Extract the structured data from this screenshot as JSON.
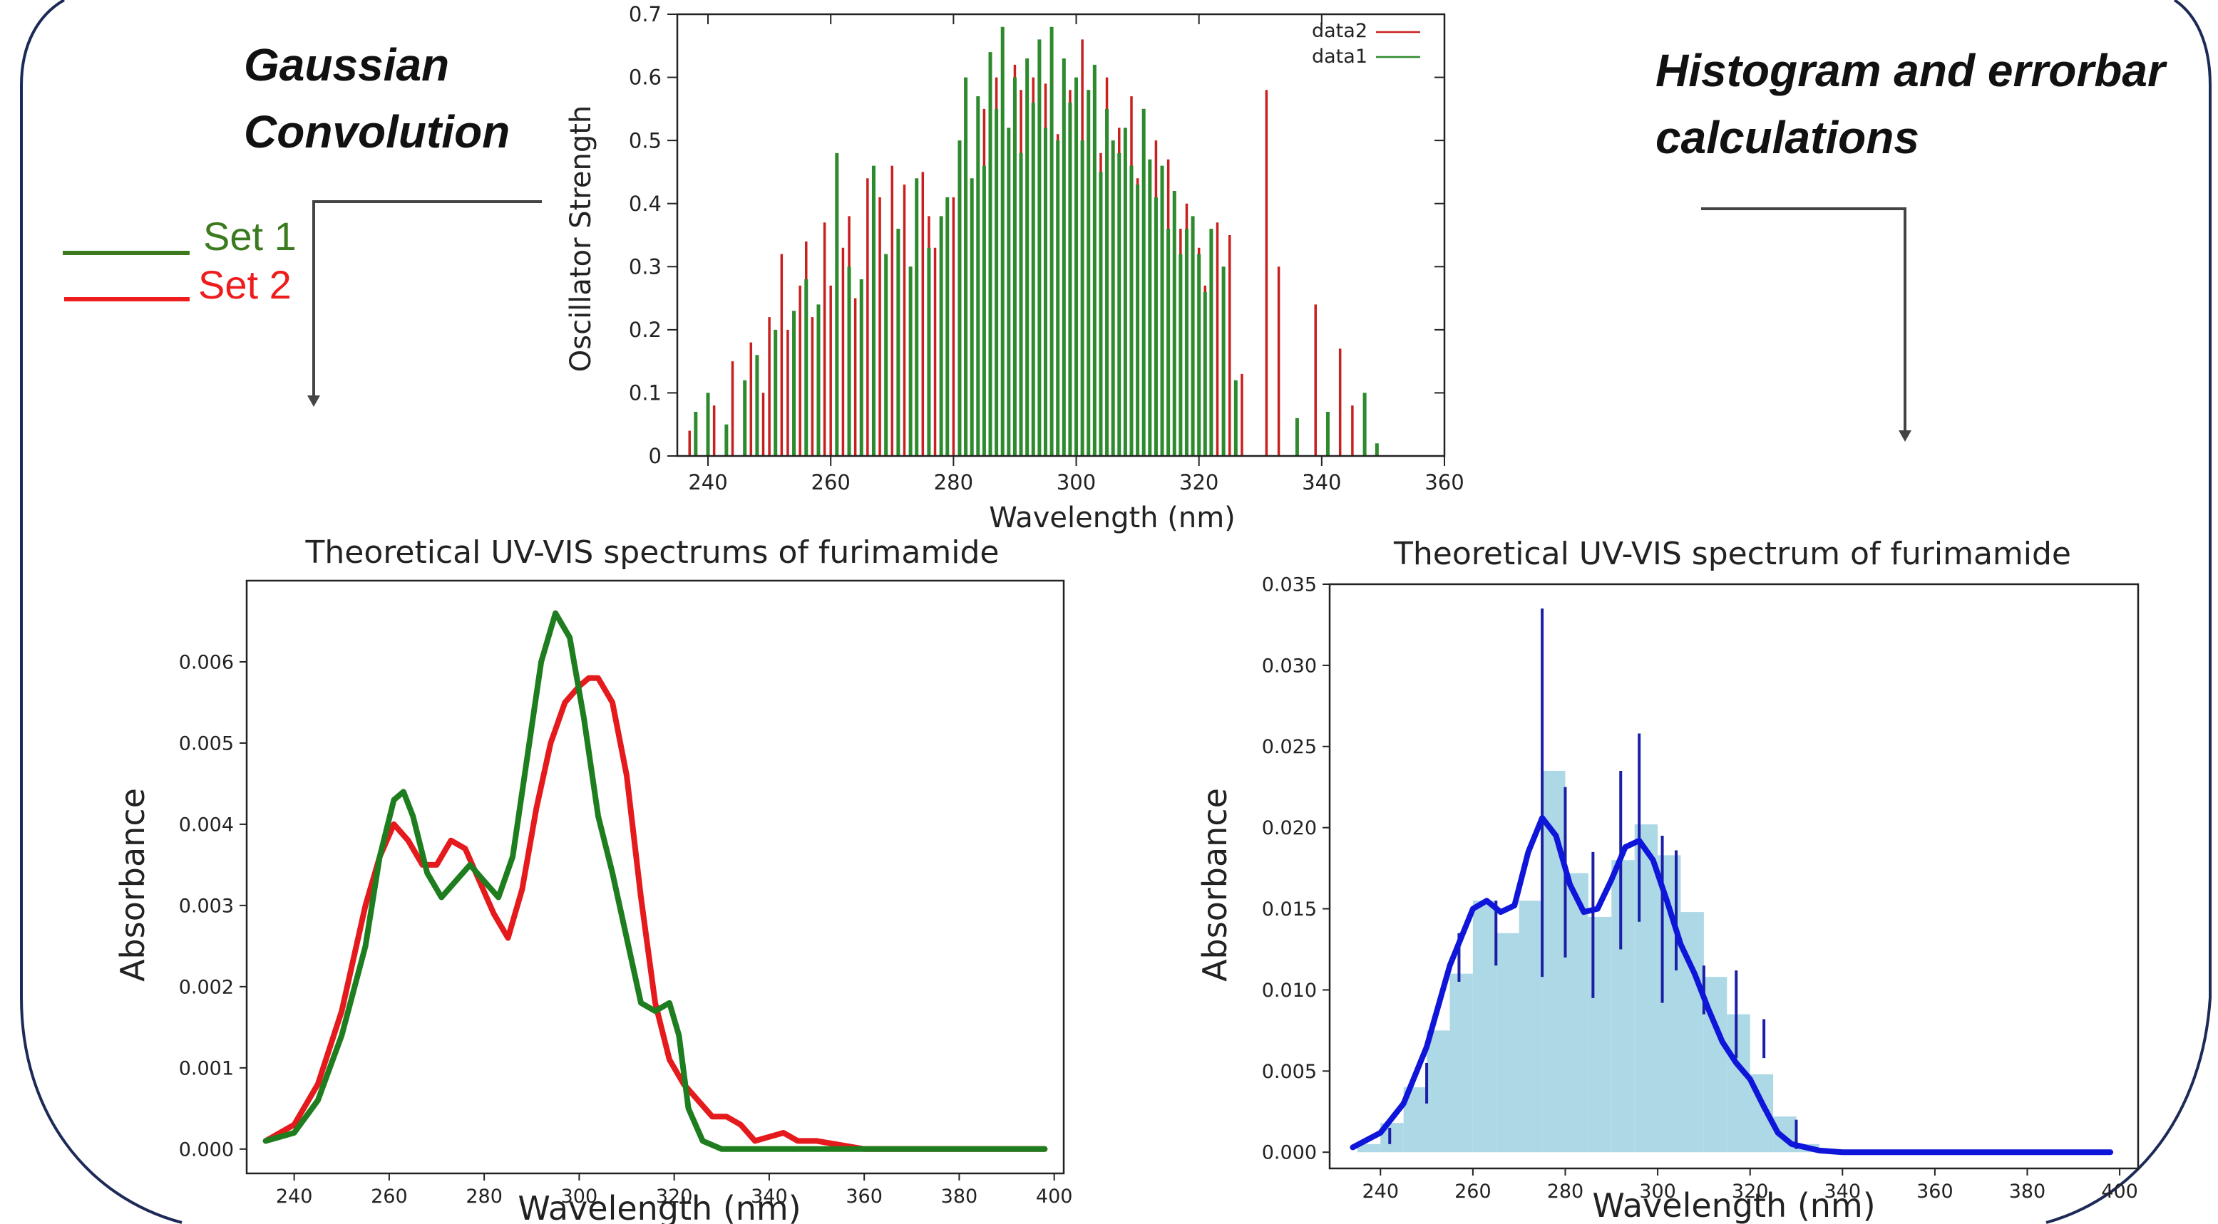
{
  "captions": {
    "gaussian_line1": "Gaussian",
    "gaussian_line2": "Convolution",
    "histogram_line1": "Histogram and errorbar",
    "histogram_line2": "calculations"
  },
  "side_legend": {
    "set1_label": "Set 1",
    "set1_color": "#3b7a1e",
    "set2_label": "Set 2",
    "set2_color": "#ee1c1c"
  },
  "chart_data": [
    {
      "type": "bar",
      "subtype": "stick-spectrum",
      "title": "",
      "xlabel": "Wavelength (nm)",
      "ylabel": "Oscillator Strength",
      "xlim": [
        235,
        360
      ],
      "ylim": [
        0,
        0.7
      ],
      "xticks": [
        "240",
        "260",
        "280",
        "300",
        "320",
        "340",
        "360"
      ],
      "yticks": [
        "0",
        "0.1",
        "0.2",
        "0.3",
        "0.4",
        "0.5",
        "0.6",
        "0.7"
      ],
      "legend": "top-right",
      "grid": false,
      "series": [
        {
          "name": "data2",
          "color": "#c8201e",
          "x": [
            237,
            241,
            244,
            247,
            249,
            250,
            252,
            253,
            255,
            256,
            257,
            259,
            260,
            262,
            263,
            264,
            266,
            267,
            268,
            270,
            271,
            272,
            273,
            275,
            276,
            277,
            278,
            280,
            281,
            282,
            284,
            285,
            286,
            287,
            288,
            289,
            290,
            291,
            292,
            293,
            294,
            295,
            296,
            297,
            298,
            299,
            300,
            301,
            302,
            303,
            304,
            305,
            306,
            307,
            308,
            309,
            310,
            311,
            312,
            313,
            314,
            315,
            316,
            317,
            318,
            319,
            320,
            321,
            322,
            323,
            325,
            327,
            331,
            333,
            339,
            343,
            345
          ],
          "values": [
            0.04,
            0.08,
            0.15,
            0.18,
            0.1,
            0.22,
            0.32,
            0.2,
            0.27,
            0.34,
            0.22,
            0.37,
            0.27,
            0.33,
            0.38,
            0.25,
            0.44,
            0.3,
            0.41,
            0.46,
            0.35,
            0.43,
            0.3,
            0.45,
            0.38,
            0.33,
            0.36,
            0.41,
            0.48,
            0.36,
            0.49,
            0.55,
            0.45,
            0.6,
            0.52,
            0.5,
            0.62,
            0.58,
            0.47,
            0.6,
            0.49,
            0.59,
            0.54,
            0.51,
            0.56,
            0.58,
            0.52,
            0.66,
            0.5,
            0.57,
            0.48,
            0.6,
            0.45,
            0.52,
            0.47,
            0.57,
            0.44,
            0.55,
            0.38,
            0.5,
            0.42,
            0.47,
            0.35,
            0.36,
            0.4,
            0.28,
            0.33,
            0.27,
            0.2,
            0.37,
            0.35,
            0.13,
            0.58,
            0.3,
            0.24,
            0.17,
            0.08
          ]
        },
        {
          "name": "data1",
          "color": "#2d8a2d",
          "x": [
            238,
            240,
            243,
            246,
            248,
            251,
            254,
            256,
            258,
            261,
            263,
            265,
            267,
            269,
            271,
            273,
            274,
            276,
            278,
            279,
            281,
            282,
            283,
            284,
            285,
            286,
            287,
            288,
            289,
            290,
            291,
            292,
            293,
            294,
            295,
            296,
            297,
            298,
            299,
            300,
            301,
            302,
            303,
            304,
            305,
            306,
            307,
            308,
            309,
            310,
            311,
            312,
            313,
            314,
            315,
            316,
            317,
            318,
            319,
            320,
            321,
            322,
            324,
            326,
            336,
            341,
            347,
            349
          ],
          "values": [
            0.07,
            0.1,
            0.05,
            0.12,
            0.16,
            0.2,
            0.23,
            0.28,
            0.24,
            0.48,
            0.3,
            0.28,
            0.46,
            0.32,
            0.36,
            0.3,
            0.44,
            0.33,
            0.38,
            0.41,
            0.5,
            0.6,
            0.44,
            0.57,
            0.46,
            0.64,
            0.55,
            0.68,
            0.52,
            0.6,
            0.48,
            0.63,
            0.56,
            0.66,
            0.52,
            0.68,
            0.5,
            0.63,
            0.56,
            0.6,
            0.5,
            0.58,
            0.62,
            0.45,
            0.55,
            0.5,
            0.48,
            0.52,
            0.46,
            0.43,
            0.55,
            0.47,
            0.41,
            0.46,
            0.36,
            0.42,
            0.32,
            0.36,
            0.38,
            0.32,
            0.26,
            0.36,
            0.3,
            0.12,
            0.06,
            0.07,
            0.1,
            0.02
          ]
        }
      ]
    },
    {
      "type": "line",
      "title": "Theoretical UV-VIS spectrums of furimamide",
      "xlabel": "Wavelength (nm)",
      "ylabel": "Absorbance",
      "xlim": [
        230,
        402
      ],
      "ylim": [
        -0.0003,
        0.007
      ],
      "xticks": [
        "240",
        "260",
        "280",
        "300",
        "320",
        "340",
        "360",
        "380",
        "400"
      ],
      "yticks": [
        "0.000",
        "0.001",
        "0.002",
        "0.003",
        "0.004",
        "0.005",
        "0.006"
      ],
      "grid": false,
      "series": [
        {
          "color": "#e41a1c",
          "x": [
            234,
            240,
            245,
            250,
            255,
            258,
            261,
            264,
            267,
            270,
            273,
            276,
            279,
            282,
            285,
            288,
            291,
            294,
            297,
            300,
            302,
            304,
            307,
            310,
            313,
            316,
            319,
            322,
            325,
            328,
            331,
            334,
            337,
            340,
            343,
            346,
            350,
            360,
            370,
            380,
            390,
            398
          ],
          "values": [
            0.0001,
            0.0003,
            0.0008,
            0.0017,
            0.003,
            0.0036,
            0.004,
            0.0038,
            0.0035,
            0.0035,
            0.0038,
            0.0037,
            0.0033,
            0.0029,
            0.0026,
            0.0032,
            0.0042,
            0.005,
            0.0055,
            0.0057,
            0.0058,
            0.0058,
            0.0055,
            0.0046,
            0.0031,
            0.0018,
            0.0011,
            0.0008,
            0.0006,
            0.0004,
            0.0004,
            0.0003,
            0.0001,
            0.00015,
            0.0002,
            0.0001,
            0.0001,
            0.0,
            0.0,
            0.0,
            0.0,
            0.0
          ]
        },
        {
          "color": "#1e7d1e",
          "x": [
            234,
            240,
            245,
            250,
            255,
            258,
            261,
            263,
            265,
            268,
            271,
            274,
            277,
            280,
            283,
            286,
            289,
            292,
            295,
            298,
            301,
            304,
            307,
            310,
            313,
            316,
            319,
            321,
            323,
            326,
            330,
            335,
            340,
            350,
            360,
            370,
            380,
            390,
            398
          ],
          "values": [
            0.0001,
            0.0002,
            0.0006,
            0.0014,
            0.0025,
            0.0036,
            0.0043,
            0.0044,
            0.0041,
            0.0034,
            0.0031,
            0.0033,
            0.0035,
            0.0033,
            0.0031,
            0.0036,
            0.0048,
            0.006,
            0.0066,
            0.0063,
            0.0053,
            0.0041,
            0.0034,
            0.0026,
            0.0018,
            0.0017,
            0.0018,
            0.0014,
            0.0005,
            0.0001,
            0.0,
            0.0,
            0.0,
            0.0,
            0.0,
            0.0,
            0.0,
            0.0,
            0.0
          ]
        }
      ]
    },
    {
      "type": "bar",
      "subtype": "histogram-with-kde-and-errorbars",
      "title": "Theoretical UV-VIS spectrum of furimamide",
      "xlabel": "Wavelength (nm)",
      "ylabel": "Absorbance",
      "xlim": [
        229,
        404
      ],
      "ylim": [
        -0.001,
        0.035
      ],
      "xticks": [
        "240",
        "260",
        "280",
        "300",
        "320",
        "340",
        "360",
        "380",
        "400"
      ],
      "yticks": [
        "0.000",
        "0.005",
        "0.010",
        "0.015",
        "0.020",
        "0.025",
        "0.030",
        "0.035"
      ],
      "grid": false,
      "histogram": {
        "color": "#add8e6",
        "bin_width": 5,
        "bin_starts": [
          235,
          240,
          245,
          250,
          255,
          260,
          265,
          270,
          275,
          280,
          285,
          290,
          295,
          300,
          305,
          310,
          315,
          320,
          325,
          330
        ],
        "values": [
          0.0005,
          0.0018,
          0.004,
          0.0075,
          0.011,
          0.0155,
          0.0135,
          0.0155,
          0.0235,
          0.0172,
          0.0145,
          0.018,
          0.0202,
          0.0183,
          0.0148,
          0.0108,
          0.0085,
          0.0048,
          0.0022,
          0.0005
        ]
      },
      "curve": {
        "color": "#0f16d9",
        "x": [
          234,
          240,
          245,
          250,
          255,
          260,
          263,
          266,
          269,
          272,
          275,
          278,
          281,
          284,
          287,
          290,
          293,
          296,
          299,
          302,
          305,
          308,
          311,
          314,
          317,
          320,
          323,
          326,
          329,
          335,
          340,
          350,
          360,
          370,
          380,
          390,
          398
        ],
        "values": [
          0.0003,
          0.0012,
          0.003,
          0.0065,
          0.0115,
          0.015,
          0.0155,
          0.0148,
          0.0152,
          0.0185,
          0.0206,
          0.0195,
          0.0165,
          0.0148,
          0.015,
          0.0168,
          0.0188,
          0.0192,
          0.018,
          0.0155,
          0.0128,
          0.011,
          0.0088,
          0.0068,
          0.0055,
          0.0045,
          0.0028,
          0.0012,
          0.0005,
          0.0001,
          0.0,
          0.0,
          0.0,
          0.0,
          0.0,
          0.0,
          0.0
        ]
      },
      "errorbars": {
        "color": "#1a1fa6",
        "x": [
          242,
          250,
          257,
          265,
          275,
          280,
          286,
          292,
          296,
          301,
          304,
          310,
          317,
          323,
          330
        ],
        "low": [
          0.0005,
          0.003,
          0.0105,
          0.0115,
          0.0108,
          0.012,
          0.0095,
          0.0125,
          0.0142,
          0.0092,
          0.0112,
          0.0085,
          0.0058,
          0.0058,
          0.0002
        ],
        "high": [
          0.0015,
          0.0055,
          0.0135,
          0.0155,
          0.0335,
          0.0225,
          0.0185,
          0.0235,
          0.0258,
          0.0195,
          0.0186,
          0.0115,
          0.0112,
          0.0082,
          0.002
        ]
      }
    }
  ]
}
